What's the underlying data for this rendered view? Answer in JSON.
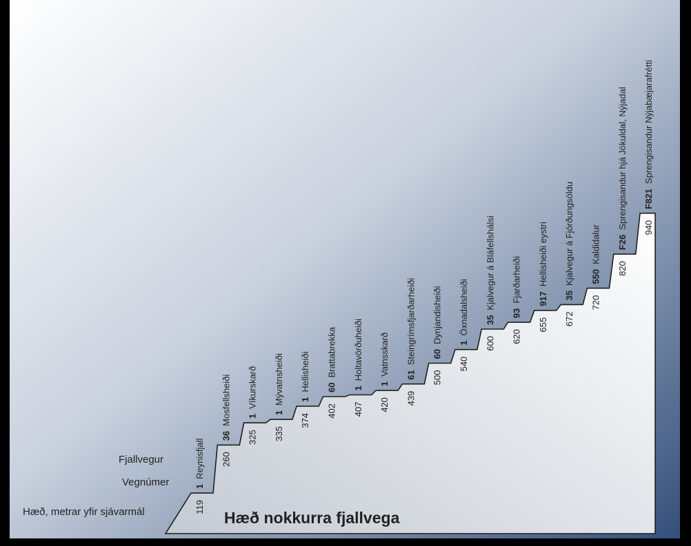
{
  "chart_data": {
    "type": "step",
    "title": "Hæð nokkurra fjallvega",
    "row_labels": [
      "Fjallvegur",
      "Vegnúmer",
      "Hæð, metrar yfir sjávarmál"
    ],
    "categories": [
      "Reynisfjall",
      "Mosfellsheiði",
      "Víkurskarð",
      "Mývatnsheiði",
      "Hellisheiði",
      "Brattabrekka",
      "Holtavörðuheiði",
      "Vatnsskarð",
      "Steingrímsfjarðarheiði",
      "Dynjandisheiði",
      "Öxnadalsheiði",
      "Kjalvegur á Bláfellshálsi",
      "Fjarðarheiði",
      "Hellisheiði eystri",
      "Kjalvegur á Fjórðungsöldu",
      "Kaldidalur",
      "Sprengisandur hjá Jökuldal, Nýjadal",
      "Sprengisandur Nýjabæjarafrétti"
    ],
    "road_numbers": [
      "1",
      "36",
      "1",
      "1",
      "1",
      "60",
      "1",
      "1",
      "61",
      "60",
      "1",
      "35",
      "93",
      "917",
      "35",
      "550",
      "F26",
      "F821"
    ],
    "values": [
      119,
      260,
      325,
      335,
      374,
      402,
      407,
      420,
      439,
      500,
      540,
      600,
      620,
      655,
      672,
      720,
      820,
      940
    ],
    "color": "#ffffff"
  }
}
